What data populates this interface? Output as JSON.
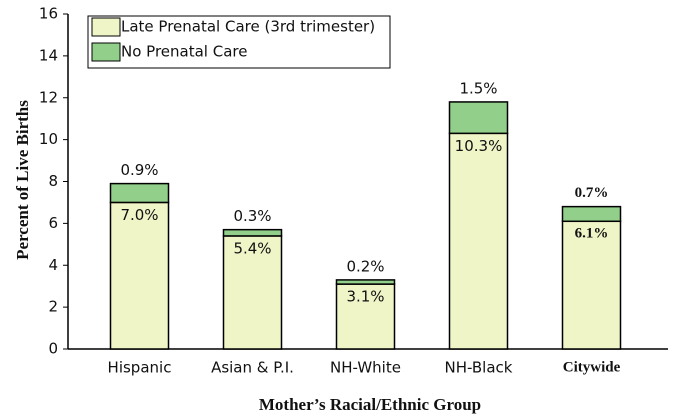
{
  "chart_data": {
    "type": "stacked_bar",
    "categories": [
      "Hispanic",
      "Asian & P.I.",
      "NH-White",
      "NH-Black",
      "Citywide"
    ],
    "series": [
      {
        "name": "Late Prenatal Care (3rd trimester)",
        "color": "#f0f5c8",
        "values": [
          7.0,
          5.4,
          3.1,
          10.3,
          6.1
        ],
        "value_labels": [
          "7.0%",
          "5.4%",
          "3.1%",
          "10.3%",
          "6.1%"
        ]
      },
      {
        "name": "No Prenatal Care",
        "color": "#92cf8a",
        "values": [
          0.9,
          0.3,
          0.2,
          1.5,
          0.7
        ],
        "value_labels": [
          "0.9%",
          "0.3%",
          "0.2%",
          "1.5%",
          "0.7%"
        ]
      }
    ],
    "y_label": "Percent of Live Births",
    "x_label": "Mother’s Racial/Ethnic Group",
    "ylim": [
      0,
      16
    ],
    "yticks": [
      0,
      2,
      4,
      6,
      8,
      10,
      12,
      14,
      16
    ],
    "legend": "upper-left"
  }
}
